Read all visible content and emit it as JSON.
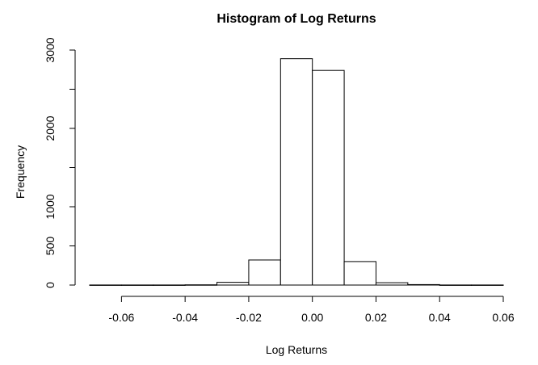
{
  "chart_data": {
    "type": "bar",
    "title": "Histogram of Log Returns",
    "xlabel": "Log Returns",
    "ylabel": "Frequency",
    "bins": [
      {
        "x0": -0.07,
        "x1": -0.06,
        "value": 1
      },
      {
        "x0": -0.06,
        "x1": -0.05,
        "value": 1
      },
      {
        "x0": -0.05,
        "x1": -0.04,
        "value": 1
      },
      {
        "x0": -0.04,
        "x1": -0.03,
        "value": 3
      },
      {
        "x0": -0.03,
        "x1": -0.02,
        "value": 35
      },
      {
        "x0": -0.02,
        "x1": -0.01,
        "value": 320
      },
      {
        "x0": -0.01,
        "x1": 0.0,
        "value": 2890
      },
      {
        "x0": 0.0,
        "x1": 0.01,
        "value": 2740
      },
      {
        "x0": 0.01,
        "x1": 0.02,
        "value": 300
      },
      {
        "x0": 0.02,
        "x1": 0.03,
        "value": 30
      },
      {
        "x0": 0.03,
        "x1": 0.04,
        "value": 6
      },
      {
        "x0": 0.04,
        "x1": 0.05,
        "value": 1
      },
      {
        "x0": 0.05,
        "x1": 0.06,
        "value": 1
      }
    ],
    "xticks": [
      -0.06,
      -0.04,
      -0.02,
      0.0,
      0.02,
      0.04,
      0.06
    ],
    "xtick_labels": [
      "-0.06",
      "-0.04",
      "-0.02",
      "0.00",
      "0.02",
      "0.04",
      "0.06"
    ],
    "yticks": [
      0,
      500,
      1000,
      2000,
      3000
    ],
    "ytick_labels": [
      "0",
      "500",
      "1000",
      "2000",
      "3000"
    ],
    "yticks_unlabeled": [
      1500,
      2500
    ],
    "xlim": [
      -0.07,
      0.06
    ],
    "ylim": [
      0,
      3000
    ],
    "grid": false,
    "bar_fill": "#ffffff",
    "bar_stroke": "#000000"
  }
}
